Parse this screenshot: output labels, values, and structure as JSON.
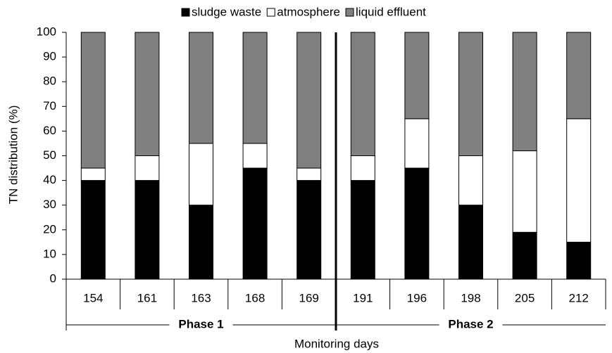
{
  "chart_data": {
    "type": "stacked_bar",
    "x_label": "Monitoring days",
    "y_label": "TN distribution (%)",
    "categories": [
      "154",
      "161",
      "163",
      "168",
      "169",
      "191",
      "196",
      "198",
      "205",
      "212"
    ],
    "groups": [
      "Phase 1",
      "Phase 2"
    ],
    "series": [
      {
        "name": "sludge waste",
        "color": "#000000",
        "values": [
          40,
          40,
          30,
          45,
          40,
          40,
          45,
          30,
          19,
          15
        ]
      },
      {
        "name": "atmosphere",
        "color": "#ffffff",
        "values": [
          5,
          10,
          25,
          10,
          5,
          10,
          20,
          20,
          33,
          50
        ]
      },
      {
        "name": "liquid effluent",
        "color": "#808080",
        "values": [
          55,
          50,
          45,
          45,
          55,
          50,
          35,
          50,
          48,
          35
        ]
      }
    ],
    "ylim": [
      0,
      100
    ],
    "yticks": [
      0,
      10,
      20,
      30,
      40,
      50,
      60,
      70,
      80,
      90,
      100
    ]
  }
}
